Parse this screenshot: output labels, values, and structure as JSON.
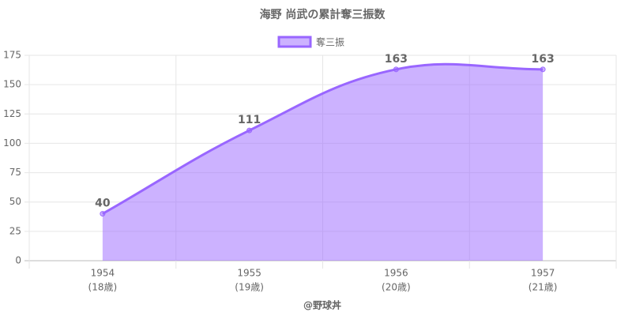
{
  "chart_data": {
    "type": "area",
    "title": "海野 尚武の累計奪三振数",
    "categories": [
      "1954",
      "1955",
      "1956",
      "1957"
    ],
    "category_sublabels": [
      "(18歳)",
      "(19歳)",
      "(20歳)",
      "(21歳)"
    ],
    "series": [
      {
        "name": "奪三振",
        "color": "#9966ff",
        "values": [
          40,
          111,
          163,
          163
        ]
      }
    ],
    "ylim": [
      0,
      175
    ],
    "yticks": [
      0,
      25,
      50,
      75,
      100,
      125,
      150,
      175
    ],
    "x_label": "@野球丼",
    "grid": true,
    "legend": "top",
    "data_labels": true
  }
}
